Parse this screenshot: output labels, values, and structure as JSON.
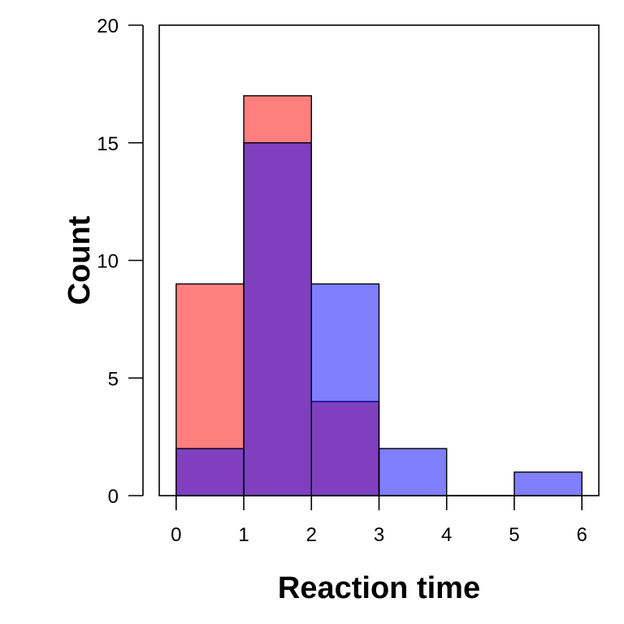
{
  "chart_data": {
    "type": "bar",
    "subtype": "overlapping-histogram",
    "title": "",
    "xlabel": "Reaction time",
    "ylabel": "Count",
    "xlim": [
      -0.25,
      6.25
    ],
    "ylim": [
      0,
      20
    ],
    "xticks": [
      0,
      1,
      2,
      3,
      4,
      5,
      6
    ],
    "yticks": [
      0,
      5,
      10,
      15,
      20
    ],
    "bin_edges": [
      0,
      1,
      2,
      3,
      4,
      5,
      6
    ],
    "grid": false,
    "legend": "none",
    "series": [
      {
        "color": "#ff0000",
        "opacity": 0.5,
        "values": [
          9,
          17,
          4,
          0,
          0,
          0
        ]
      },
      {
        "color": "#0000ff",
        "opacity": 0.5,
        "values": [
          2,
          15,
          9,
          2,
          0,
          1
        ]
      }
    ]
  }
}
